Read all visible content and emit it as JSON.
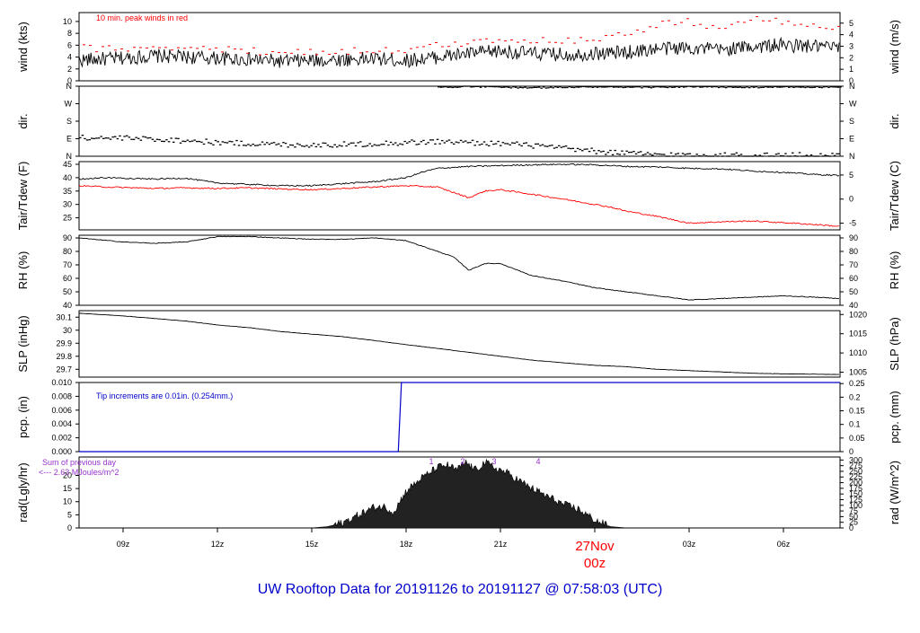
{
  "footer": {
    "title": "UW Rooftop Data for 20191126  to  20191127 @ 07:58:03  (UTC)",
    "date_label": "27Nov",
    "date_sub": "00z"
  },
  "colors": {
    "series": "#000000",
    "peak": "#ff0000",
    "dewpoint": "#ff0000",
    "precip": "#0000cc",
    "radiation_note": "#9933cc",
    "title": "#0000cc"
  },
  "chart_data": [
    {
      "type": "line",
      "panel": "wind",
      "ylabel_left": "wind (kts)",
      "ylabel_right": "wind (m/s)",
      "ylim": [
        0,
        11.5
      ],
      "yticks_left": [
        0,
        2,
        4,
        6,
        8,
        10
      ],
      "yticks_right": [
        0,
        1,
        2,
        3,
        4,
        5
      ],
      "annotation": "10 min. peak winds in red",
      "series": [
        {
          "x": [
            7.6,
            9,
            10,
            11,
            12,
            13,
            14,
            15,
            16,
            17,
            18,
            19,
            20,
            21,
            22,
            23,
            24,
            25,
            26,
            27,
            28,
            29,
            30,
            31.8
          ],
          "values": [
            3.5,
            3.8,
            4.2,
            4.0,
            3.8,
            3.6,
            3.3,
            3.4,
            3.6,
            3.7,
            3.4,
            4.0,
            4.6,
            5.0,
            4.6,
            4.4,
            4.6,
            4.8,
            5.4,
            5.6,
            5.2,
            5.8,
            6.0,
            5.6
          ]
        },
        {
          "x": [
            7.6,
            9,
            10,
            11,
            12,
            13,
            14,
            15,
            16,
            17,
            18,
            19,
            20,
            21,
            22,
            23,
            24,
            25,
            26,
            27,
            28,
            29,
            30,
            31.8
          ],
          "values": [
            5.5,
            5.4,
            5.8,
            5.6,
            5.3,
            5.0,
            4.9,
            4.8,
            5.0,
            5.2,
            5.0,
            6.0,
            6.4,
            7.2,
            6.7,
            6.8,
            7.2,
            7.8,
            9.5,
            10.0,
            8.8,
            10.5,
            9.8,
            9.0
          ]
        }
      ]
    },
    {
      "type": "scatter",
      "panel": "dir",
      "ylabel_left": "dir.",
      "ylabel_right": "dir.",
      "yticks_left": [
        "N",
        "E",
        "S",
        "W",
        "N"
      ],
      "yticks_right": [
        "N",
        "E",
        "S",
        "W",
        "N"
      ],
      "ylim": [
        0,
        360
      ],
      "series": [
        {
          "x": [
            7.6,
            9,
            10,
            11,
            12,
            13,
            14,
            15,
            16,
            17,
            18,
            19,
            20,
            21,
            22,
            23,
            24,
            25,
            26,
            27,
            28,
            29,
            30,
            31.8
          ],
          "values": [
            95,
            92,
            88,
            80,
            70,
            65,
            60,
            58,
            60,
            65,
            70,
            75,
            70,
            65,
            55,
            40,
            25,
            15,
            8,
            5,
            5,
            5,
            5,
            5
          ]
        },
        {
          "x": [
            19,
            20,
            21,
            22,
            23,
            24,
            25,
            26,
            27,
            28,
            29,
            30,
            31,
            31.8
          ],
          "values": [
            355,
            358,
            355,
            352,
            355,
            356,
            354,
            355,
            357,
            355,
            354,
            356,
            355,
            354
          ]
        }
      ]
    },
    {
      "type": "line",
      "panel": "temp",
      "ylabel_left": "Tair/Tdew (F)",
      "ylabel_right": "Tair/Tdew (C)",
      "ylim": [
        20.5,
        46
      ],
      "yticks_left": [
        25,
        30,
        35,
        40,
        45
      ],
      "yticks_right": [
        -5,
        0,
        5
      ],
      "series": [
        {
          "x": [
            7.6,
            8.5,
            10,
            11,
            12,
            13,
            14,
            15,
            16,
            17,
            18,
            18.5,
            19,
            20,
            21,
            22,
            23,
            24,
            25,
            26,
            27,
            28,
            29,
            30,
            31,
            31.8
          ],
          "values": [
            39.5,
            40.0,
            39.5,
            39.8,
            38.0,
            37.5,
            37.0,
            37.0,
            37.8,
            38.5,
            40.0,
            42.0,
            43.5,
            44.2,
            44.5,
            44.8,
            45.0,
            44.8,
            44.2,
            44.0,
            43.5,
            43.3,
            42.5,
            42.0,
            41.2,
            40.8
          ]
        },
        {
          "x": [
            7.6,
            8.5,
            10,
            11,
            12,
            13,
            14,
            15,
            16,
            17,
            18,
            19,
            19.5,
            20,
            20.5,
            21,
            22,
            23,
            24,
            24.5,
            25,
            26,
            27,
            28,
            29,
            30,
            31,
            31.8
          ],
          "values": [
            37.0,
            36.5,
            36.0,
            36.2,
            36.0,
            36.2,
            35.8,
            35.5,
            36.0,
            36.5,
            37.0,
            36.5,
            34.5,
            32.5,
            35.0,
            35.5,
            33.8,
            32.0,
            30.0,
            29.0,
            27.5,
            25.5,
            23.0,
            23.5,
            23.8,
            23.2,
            22.5,
            21.8
          ]
        }
      ]
    },
    {
      "type": "line",
      "panel": "rh",
      "ylabel_left": "RH (%)",
      "ylabel_right": "RH (%)",
      "ylim": [
        40,
        92
      ],
      "yticks_left": [
        40,
        50,
        60,
        70,
        80,
        90
      ],
      "yticks_right": [
        40,
        50,
        60,
        70,
        80,
        90
      ],
      "series": [
        {
          "x": [
            7.6,
            9,
            10,
            11,
            12,
            13,
            14,
            15,
            16,
            17,
            18,
            19,
            19.5,
            20,
            20.5,
            21,
            22,
            23,
            24,
            25,
            26,
            27,
            28,
            29,
            30,
            31,
            31.8
          ],
          "values": [
            90,
            87,
            86,
            87,
            91,
            91,
            90,
            89,
            89,
            90,
            88,
            80,
            76,
            66,
            71,
            71,
            62,
            58,
            53,
            50,
            47,
            44,
            45,
            46,
            47,
            46,
            45
          ]
        }
      ]
    },
    {
      "type": "line",
      "panel": "slp",
      "ylabel_left": "SLP (inHg)",
      "ylabel_right": "SLP (hPa)",
      "ylim": [
        29.64,
        30.15
      ],
      "yticks_left": [
        29.7,
        29.8,
        29.9,
        30.0,
        30.1
      ],
      "yticks_right": [
        1005,
        1010,
        1015,
        1020
      ],
      "series": [
        {
          "x": [
            7.6,
            9,
            10,
            11,
            12,
            13,
            14,
            15,
            16,
            17,
            18,
            19,
            20,
            21,
            22,
            23,
            24,
            25,
            26,
            27,
            28,
            29,
            30,
            31.8
          ],
          "values": [
            30.13,
            30.11,
            30.09,
            30.07,
            30.04,
            30.02,
            29.99,
            29.97,
            29.95,
            29.92,
            29.89,
            29.86,
            29.83,
            29.8,
            29.77,
            29.75,
            29.73,
            29.72,
            29.7,
            29.69,
            29.68,
            29.67,
            29.665,
            29.66
          ]
        }
      ]
    },
    {
      "type": "line",
      "panel": "pcp",
      "ylabel_left": "pcp. (in)",
      "ylabel_right": "pcp. (mm)",
      "ylim": [
        0,
        0.01
      ],
      "yticks_left": [
        "0.000",
        "0.002",
        "0.004",
        "0.006",
        "0.008",
        "0.010"
      ],
      "yticks_right": [
        "0",
        "0.05",
        "0.1",
        "0.15",
        "0.2",
        "0.25"
      ],
      "annotation": "Tip increments are 0.01in. (0.254mm.)",
      "series": [
        {
          "x": [
            7.6,
            17.75,
            17.85,
            31.8
          ],
          "values": [
            0,
            0,
            0.01,
            0.01
          ]
        }
      ]
    },
    {
      "type": "area",
      "panel": "rad",
      "ylabel_left": "rad(Lgly/hr)",
      "ylabel_right": "rad (W/m^2)",
      "ylim": [
        0,
        27
      ],
      "yticks_left": [
        0,
        5,
        10,
        15,
        20
      ],
      "yticks_right": [
        0,
        25,
        50,
        75,
        100,
        125,
        150,
        175,
        200,
        225,
        250,
        275,
        300
      ],
      "annotations": [
        "Sum of previous day",
        "<--- 2.63 MJoules/m^2"
      ],
      "hour_marks": [
        "1",
        "2",
        "3",
        "4"
      ],
      "hour_marks_x": [
        18.8,
        19.8,
        20.8,
        22.2
      ],
      "series": [
        {
          "x": [
            15,
            15.5,
            16,
            16.5,
            17,
            17.3,
            17.6,
            17.8,
            18,
            18.5,
            19,
            19.3,
            19.6,
            19.9,
            20.2,
            20.5,
            20.8,
            21.2,
            21.6,
            22,
            22.5,
            23,
            23.5,
            24,
            24.5,
            25
          ],
          "values": [
            0,
            0.5,
            2,
            5,
            8,
            8,
            6,
            10,
            14,
            19,
            23,
            24,
            22,
            25,
            22,
            25,
            23,
            21,
            18,
            15,
            12,
            9,
            7,
            3,
            0.5,
            0
          ]
        }
      ]
    }
  ],
  "x_axis": {
    "ticks": [
      "09z",
      "12z",
      "15z",
      "18z",
      "21z",
      "",
      "03z",
      "06z"
    ],
    "tick_hours": [
      9,
      12,
      15,
      18,
      21,
      24,
      27,
      30
    ],
    "xlim": [
      7.6,
      31.8
    ]
  }
}
